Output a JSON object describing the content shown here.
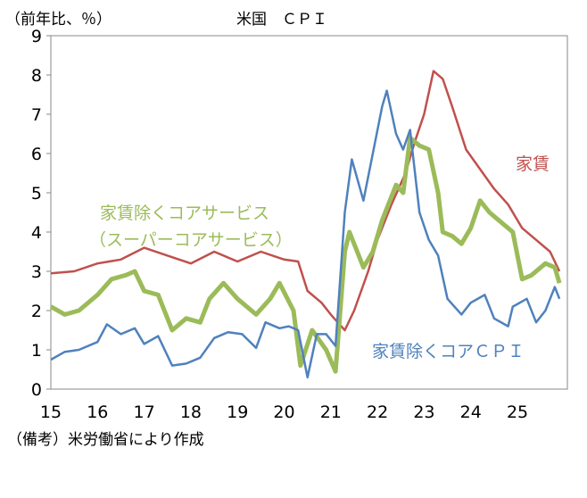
{
  "chart_data": {
    "type": "line",
    "title": "米国　ＣＰＩ",
    "ylabel": "（前年比、％）",
    "note": "（備考）米労働省により作成",
    "ylim": [
      0,
      9
    ],
    "xlim": [
      2015,
      2026.07
    ],
    "yticks": [
      "0",
      "1",
      "2",
      "3",
      "4",
      "5",
      "6",
      "7",
      "8",
      "9"
    ],
    "xticks": [
      {
        "label": "15",
        "t": 2015
      },
      {
        "label": "16",
        "t": 2016
      },
      {
        "label": "17",
        "t": 2017
      },
      {
        "label": "18",
        "t": 2018
      },
      {
        "label": "19",
        "t": 2019
      },
      {
        "label": "20",
        "t": 2020
      },
      {
        "label": "21",
        "t": 2021
      },
      {
        "label": "22",
        "t": 2022
      },
      {
        "label": "23",
        "t": 2023
      },
      {
        "label": "24",
        "t": 2024
      },
      {
        "label": "25",
        "t": 2025
      }
    ],
    "series": [
      {
        "name": "家賃",
        "color": "#c0504d",
        "width": 2.5,
        "t": [
          2015,
          2015.5,
          2016,
          2016.5,
          2017,
          2017.5,
          2018,
          2018.5,
          2019,
          2019.5,
          2020,
          2020.3,
          2020.5,
          2020.8,
          2021,
          2021.3,
          2021.5,
          2021.8,
          2022,
          2022.3,
          2022.6,
          2022.8,
          2023,
          2023.2,
          2023.4,
          2023.6,
          2023.9,
          2024.2,
          2024.5,
          2024.8,
          2025.1,
          2025.4,
          2025.7,
          2025.9
        ],
        "v": [
          2.95,
          3.0,
          3.2,
          3.3,
          3.6,
          3.4,
          3.2,
          3.5,
          3.25,
          3.5,
          3.3,
          3.25,
          2.5,
          2.2,
          1.9,
          1.5,
          2.0,
          3.0,
          3.8,
          4.7,
          5.5,
          6.3,
          7.0,
          8.1,
          7.9,
          7.2,
          6.1,
          5.6,
          5.1,
          4.7,
          4.1,
          3.8,
          3.5,
          3.0
        ]
      },
      {
        "name": "家賃除くコアサービス（スーパーコアサービス）",
        "color": "#9bbb59",
        "width": 5,
        "t": [
          2015,
          2015.3,
          2015.6,
          2016,
          2016.3,
          2016.6,
          2016.8,
          2017,
          2017.3,
          2017.6,
          2017.9,
          2018.2,
          2018.4,
          2018.7,
          2019,
          2019.4,
          2019.7,
          2019.9,
          2020.2,
          2020.35,
          2020.6,
          2020.9,
          2021.1,
          2021.3,
          2021.4,
          2021.7,
          2021.9,
          2022.1,
          2022.4,
          2022.55,
          2022.7,
          2022.9,
          2023.1,
          2023.3,
          2023.4,
          2023.6,
          2023.8,
          2024,
          2024.2,
          2024.4,
          2024.6,
          2024.9,
          2025.1,
          2025.3,
          2025.6,
          2025.8,
          2025.9
        ],
        "v": [
          2.1,
          1.9,
          2.0,
          2.4,
          2.8,
          2.9,
          3.0,
          2.5,
          2.4,
          1.5,
          1.8,
          1.7,
          2.3,
          2.7,
          2.3,
          1.9,
          2.3,
          2.7,
          2.0,
          0.6,
          1.5,
          1.0,
          0.45,
          3.5,
          4.0,
          3.1,
          3.5,
          4.3,
          5.2,
          5.0,
          6.4,
          6.2,
          6.1,
          5.0,
          4.0,
          3.9,
          3.7,
          4.1,
          4.8,
          4.5,
          4.3,
          4.0,
          2.8,
          2.9,
          3.2,
          3.1,
          2.7
        ]
      },
      {
        "name": "家賃除くコアＣＰＩ",
        "color": "#4f81bd",
        "width": 2.5,
        "t": [
          2015,
          2015.3,
          2015.6,
          2016,
          2016.2,
          2016.5,
          2016.8,
          2017,
          2017.3,
          2017.6,
          2017.9,
          2018.2,
          2018.5,
          2018.8,
          2019.1,
          2019.4,
          2019.6,
          2019.9,
          2020.1,
          2020.3,
          2020.5,
          2020.7,
          2020.9,
          2021.1,
          2021.3,
          2021.45,
          2021.7,
          2021.9,
          2022.1,
          2022.2,
          2022.4,
          2022.55,
          2022.7,
          2022.9,
          2023.1,
          2023.3,
          2023.5,
          2023.8,
          2024,
          2024.3,
          2024.5,
          2024.8,
          2024.9,
          2025.2,
          2025.4,
          2025.6,
          2025.8,
          2025.9
        ],
        "v": [
          0.75,
          0.95,
          1.0,
          1.2,
          1.65,
          1.4,
          1.55,
          1.15,
          1.35,
          0.6,
          0.65,
          0.8,
          1.3,
          1.45,
          1.4,
          1.05,
          1.7,
          1.55,
          1.6,
          1.5,
          0.3,
          1.4,
          1.4,
          1.1,
          4.5,
          5.85,
          4.8,
          6.0,
          7.2,
          7.6,
          6.5,
          6.1,
          6.6,
          4.5,
          3.8,
          3.4,
          2.3,
          1.9,
          2.2,
          2.4,
          1.8,
          1.6,
          2.1,
          2.3,
          1.7,
          2.0,
          2.6,
          2.3
        ]
      }
    ],
    "annotations": {
      "rent": "家賃",
      "supercore_1": "家賃除くコアサービス",
      "supercore_2": "（スーパーコアサービス）",
      "core_ex_rent": "家賃除くコアＣＰＩ"
    }
  }
}
